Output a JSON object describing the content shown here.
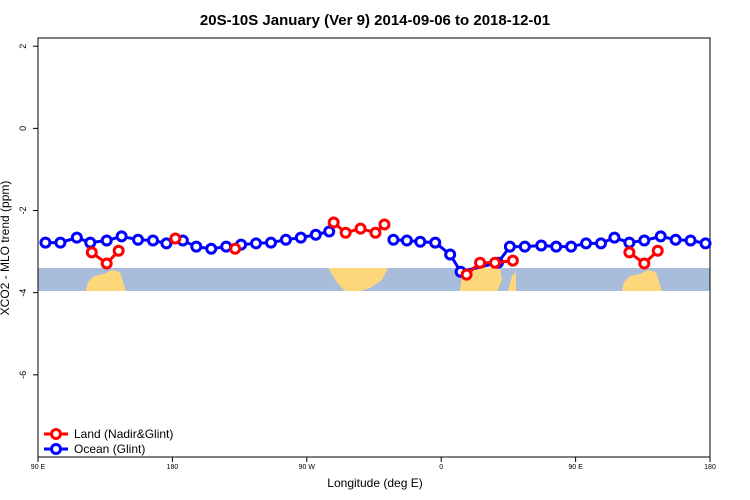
{
  "chart_data": {
    "type": "line",
    "title": "20S-10S January (Ver 9)   2014-09-06 to 2018-12-01",
    "x_label": "Longitude (deg E)",
    "y_label": "XCO2 - MLO trend (ppm)",
    "xlim": [
      90,
      540
    ],
    "ylim": [
      -8,
      2.2
    ],
    "xticks": [
      {
        "value": 90,
        "label": "90 E"
      },
      180,
      {
        "value": 270,
        "label": "90 W"
      },
      {
        "value": 360,
        "label": "0"
      },
      {
        "value": 450,
        "label": "90 E"
      },
      {
        "value": 540,
        "label": "180"
      }
    ],
    "yticks": [
      2,
      0,
      -2,
      -4,
      -6
    ],
    "legend": "bottom-left",
    "series": [
      {
        "name": "Ocean (Glint)",
        "color": "#0000ff",
        "x": [
          95,
          105,
          116,
          125,
          136,
          146,
          157,
          167,
          176,
          187,
          196,
          206,
          216,
          226,
          236,
          246,
          256,
          266,
          276,
          285,
          null,
          328,
          337,
          346,
          356,
          366,
          373,
          398,
          406,
          416,
          427,
          437,
          447,
          457,
          467,
          476,
          486,
          496,
          507,
          517,
          527,
          537
        ],
        "values": [
          -2.78,
          -2.78,
          -2.66,
          -2.78,
          -2.73,
          -2.63,
          -2.71,
          -2.73,
          -2.8,
          -2.73,
          -2.88,
          -2.93,
          -2.88,
          -2.83,
          -2.8,
          -2.78,
          -2.71,
          -2.66,
          -2.59,
          -2.51,
          null,
          -2.71,
          -2.73,
          -2.76,
          -2.78,
          -3.07,
          -3.49,
          -3.27,
          -2.88,
          -2.88,
          -2.85,
          -2.88,
          -2.88,
          -2.8,
          -2.8,
          -2.66,
          -2.78,
          -2.73,
          -2.63,
          -2.71,
          -2.73,
          -2.8
        ]
      },
      {
        "name": "Land (Nadir&Glint)",
        "color": "#ff0000",
        "x": [
          126,
          136,
          144,
          null,
          182,
          null,
          222,
          null,
          288,
          296,
          306,
          316,
          322,
          null,
          377,
          386,
          396,
          408,
          null,
          486,
          496,
          505
        ],
        "values": [
          -3.02,
          -3.29,
          -2.98,
          null,
          -2.68,
          null,
          -2.93,
          null,
          -2.29,
          -2.54,
          -2.44,
          -2.54,
          -2.34,
          null,
          -3.56,
          -3.27,
          -3.27,
          -3.22,
          null,
          -3.02,
          -3.29,
          -2.98
        ]
      }
    ]
  }
}
